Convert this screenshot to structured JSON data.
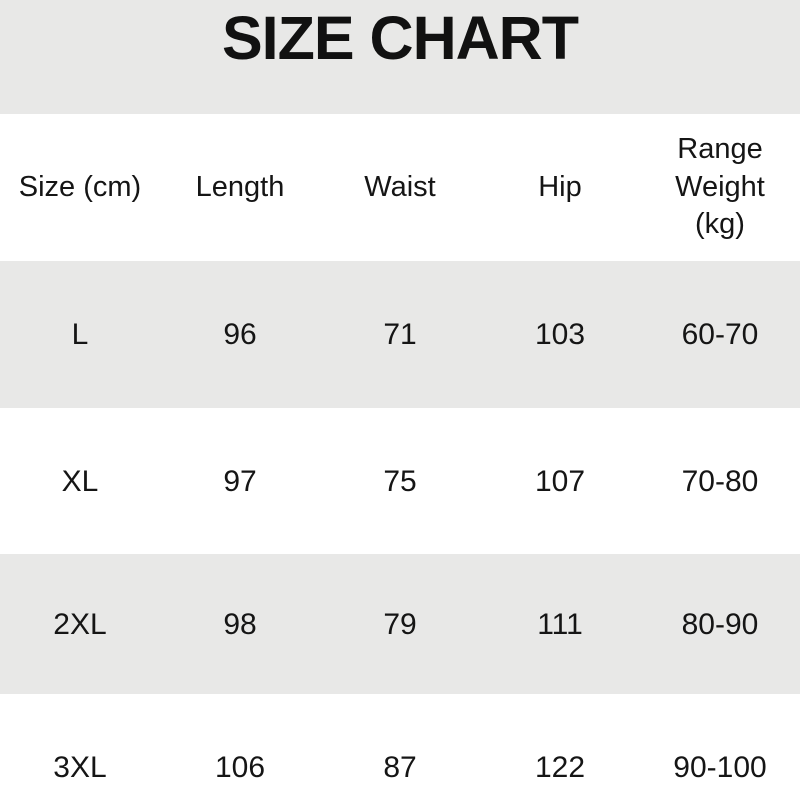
{
  "colors": {
    "band_gray": "#e8e8e7",
    "row_stripe_gray": "#e8e8e7",
    "background": "#ffffff",
    "text": "#151515"
  },
  "chart_data": {
    "type": "table",
    "title": "SIZE CHART",
    "columns": [
      "Size (cm)",
      "Length",
      "Waist",
      "Hip",
      "Range Weight (kg)"
    ],
    "rows": [
      [
        "L",
        96,
        71,
        103,
        "60-70"
      ],
      [
        "XL",
        97,
        75,
        107,
        "70-80"
      ],
      [
        "2XL",
        98,
        79,
        111,
        "80-90"
      ],
      [
        "3XL",
        106,
        87,
        122,
        "90-100"
      ]
    ],
    "layout": {
      "columns_equal_width": true,
      "striped_rows": "gray-white alternating",
      "header_row_background": "white",
      "title_band_background": "gray"
    }
  }
}
